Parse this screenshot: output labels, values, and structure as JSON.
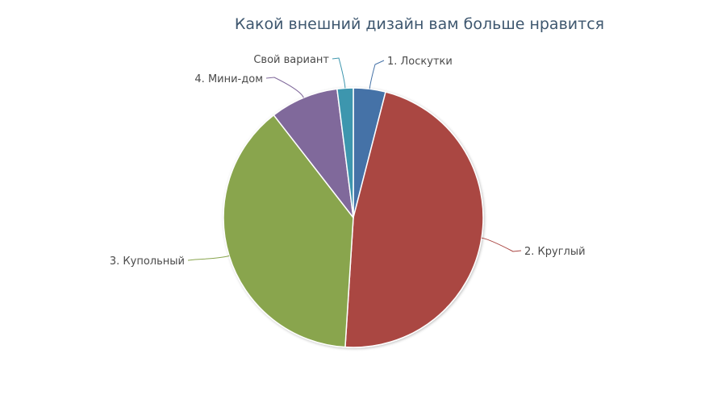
{
  "chart_data": {
    "type": "pie",
    "title": "Какой внешний дизайн вам больше нравится",
    "slices": [
      {
        "label": "1. Лоскутки",
        "value": 4,
        "color": "#4572a7"
      },
      {
        "label": "2. Круглый",
        "value": 47,
        "color": "#aa4643"
      },
      {
        "label": "3. Купольный",
        "value": 38.5,
        "color": "#89a54e"
      },
      {
        "label": "4. Мини-дом",
        "value": 8.5,
        "color": "#80699b"
      },
      {
        "label": "Свой вариант",
        "value": 2,
        "color": "#3d96ae"
      }
    ],
    "legend": "none",
    "labels": "outside-with-connectors"
  }
}
